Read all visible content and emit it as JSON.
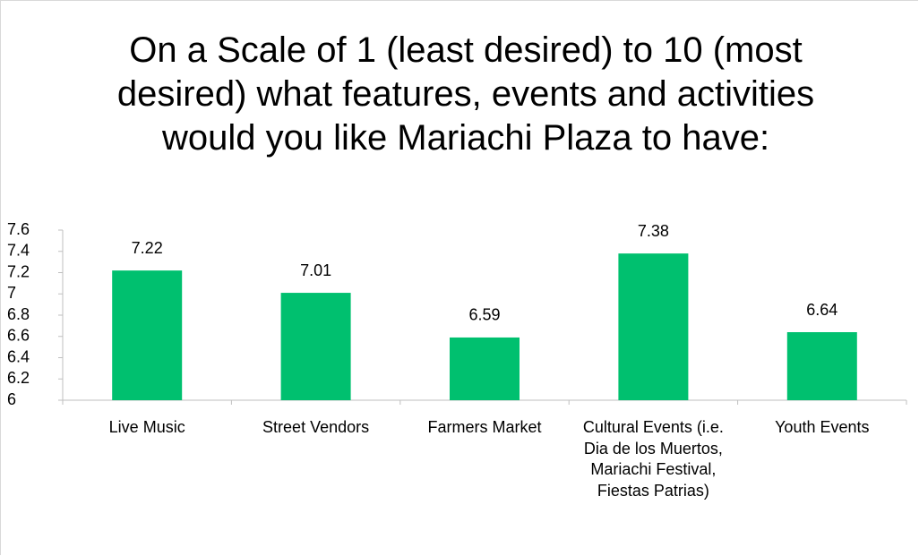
{
  "chart_data": {
    "type": "bar",
    "title": "On a Scale of 1 (least desired) to 10 (most desired) what features, events and activities would you like Mariachi Plaza to have:",
    "categories": [
      "Live Music",
      "Street Vendors",
      "Farmers Market",
      "Cultural Events (i.e. Dia de los Muertos, Mariachi Festival, Fiestas Patrias)",
      "Youth Events"
    ],
    "values": [
      7.22,
      7.01,
      6.59,
      7.38,
      6.64
    ],
    "color": "#00c06f",
    "ylim": [
      6,
      7.6
    ],
    "yticks": [
      6,
      6.2,
      6.4,
      6.6,
      6.8,
      7,
      7.2,
      7.4,
      7.6
    ],
    "grid": false
  }
}
